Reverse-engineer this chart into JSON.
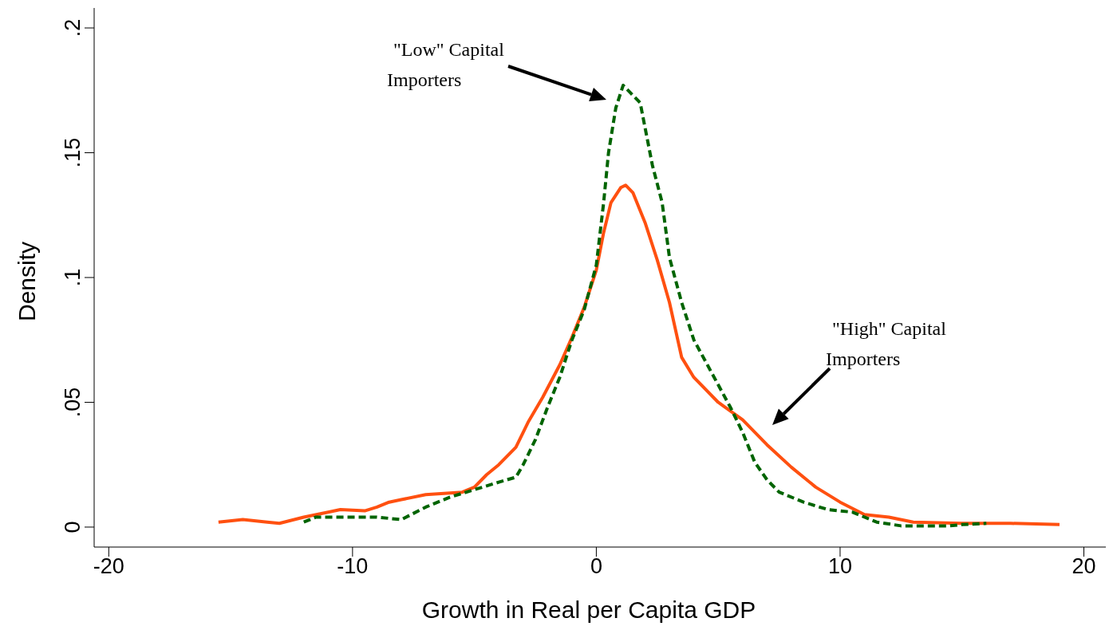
{
  "chart_data": {
    "type": "line",
    "xlabel": "Growth in Real per Capita GDP",
    "ylabel": "Density",
    "xlim": [
      -20.6,
      20.9
    ],
    "ylim": [
      -0.008,
      0.208
    ],
    "xticks": [
      -20,
      -10,
      0,
      10,
      20
    ],
    "yticks": [
      {
        "value": 0,
        "label": "0"
      },
      {
        "value": 0.05,
        "label": ".05"
      },
      {
        "value": 0.1,
        "label": ".1"
      },
      {
        "value": 0.15,
        "label": ".15"
      },
      {
        "value": 0.2,
        "label": ".2"
      }
    ],
    "marker": "none",
    "series": [
      {
        "color": "#ff5010",
        "line_style": "solid",
        "x": [
          -15.5,
          -14.5,
          -13.5,
          -13,
          -12,
          -11,
          -10.5,
          -9.5,
          -9,
          -8.5,
          -8,
          -7,
          -5.5,
          -5,
          -4.5,
          -4,
          -3.3,
          -2.8,
          -2.2,
          -1.5,
          -1,
          -0.5,
          0,
          0.3,
          0.6,
          1,
          1.2,
          1.5,
          2,
          2.5,
          3,
          3.5,
          4,
          5,
          6,
          7,
          8,
          9,
          10,
          11,
          12,
          13,
          15,
          17,
          19
        ],
        "values": [
          0.002,
          0.003,
          0.002,
          0.0015,
          0.004,
          0.006,
          0.007,
          0.0065,
          0.008,
          0.01,
          0.011,
          0.013,
          0.014,
          0.016,
          0.021,
          0.025,
          0.032,
          0.042,
          0.052,
          0.065,
          0.076,
          0.088,
          0.103,
          0.118,
          0.13,
          0.136,
          0.137,
          0.134,
          0.122,
          0.107,
          0.09,
          0.068,
          0.06,
          0.05,
          0.043,
          0.033,
          0.024,
          0.016,
          0.01,
          0.005,
          0.004,
          0.002,
          0.0015,
          0.0015,
          0.001
        ]
      },
      {
        "color": "#006400",
        "line_style": "dashed",
        "x": [
          -12,
          -11.5,
          -9,
          -8,
          -7,
          -6,
          -5,
          -4,
          -3.3,
          -3,
          -2.5,
          -2,
          -1.5,
          -1,
          -0.5,
          0,
          0.3,
          0.5,
          0.8,
          1.1,
          1.5,
          1.8,
          2,
          2.3,
          2.7,
          3,
          3.5,
          4,
          4.5,
          5,
          5.5,
          6,
          6.5,
          7,
          7.5,
          8.5,
          9.5,
          10.5,
          11.5,
          12.5,
          14.5,
          15,
          16
        ],
        "values": [
          0.002,
          0.004,
          0.004,
          0.003,
          0.008,
          0.012,
          0.015,
          0.018,
          0.02,
          0.025,
          0.035,
          0.048,
          0.06,
          0.075,
          0.087,
          0.105,
          0.13,
          0.15,
          0.168,
          0.177,
          0.173,
          0.17,
          0.16,
          0.145,
          0.13,
          0.108,
          0.09,
          0.075,
          0.066,
          0.057,
          0.048,
          0.038,
          0.026,
          0.019,
          0.014,
          0.01,
          0.007,
          0.006,
          0.002,
          0.0005,
          0.0005,
          0.001,
          0.0015
        ]
      }
    ],
    "annotations": [
      "\"Low\" Capital Importers",
      "\"High\" Capital Importers"
    ]
  }
}
